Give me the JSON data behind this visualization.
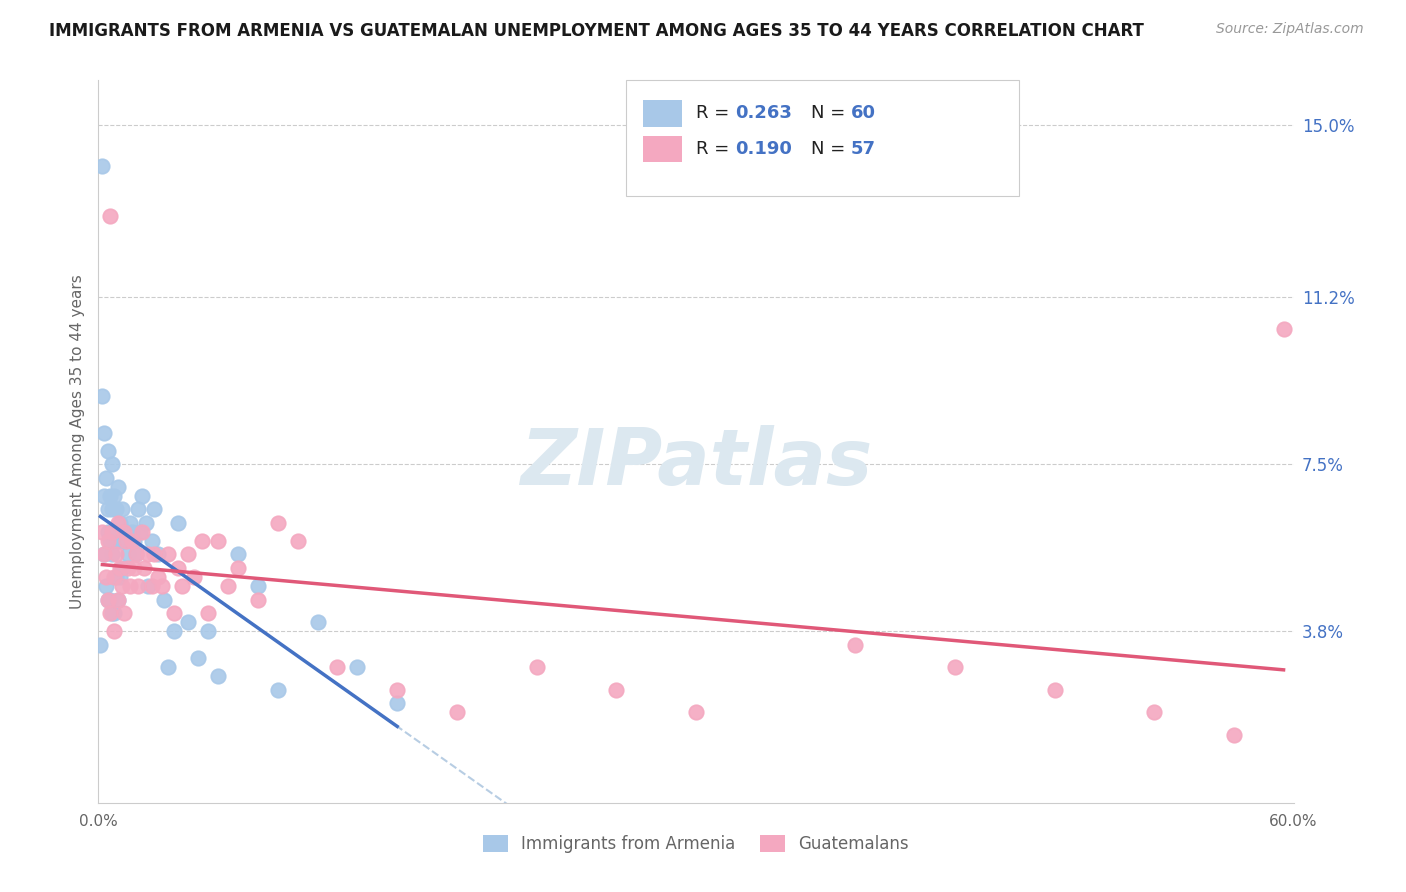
{
  "title": "IMMIGRANTS FROM ARMENIA VS GUATEMALAN UNEMPLOYMENT AMONG AGES 35 TO 44 YEARS CORRELATION CHART",
  "source": "Source: ZipAtlas.com",
  "ylabel": "Unemployment Among Ages 35 to 44 years",
  "xlim": [
    0.0,
    0.6
  ],
  "ylim": [
    0.0,
    0.16
  ],
  "x_ticks": [
    0.0,
    0.1,
    0.2,
    0.3,
    0.4,
    0.5,
    0.6
  ],
  "x_tick_labels": [
    "0.0%",
    "",
    "",
    "",
    "",
    "",
    "60.0%"
  ],
  "y_tick_labels_right": [
    "15.0%",
    "11.2%",
    "7.5%",
    "3.8%"
  ],
  "y_tick_vals_right": [
    0.15,
    0.112,
    0.075,
    0.038
  ],
  "r_armenia": 0.263,
  "n_armenia": 60,
  "r_guatemalan": 0.19,
  "n_guatemalan": 57,
  "armenia_color": "#a8c8e8",
  "guatemalan_color": "#f4a8c0",
  "armenia_line_color": "#4472c4",
  "guatemalan_line_color": "#e05878",
  "dashed_line_color": "#b0c8e0",
  "legend_text_color": "#4472c4",
  "watermark_color": "#dce8f0",
  "armenia_x": [
    0.001,
    0.002,
    0.002,
    0.003,
    0.003,
    0.003,
    0.004,
    0.004,
    0.005,
    0.005,
    0.005,
    0.005,
    0.006,
    0.006,
    0.006,
    0.007,
    0.007,
    0.007,
    0.007,
    0.008,
    0.008,
    0.008,
    0.009,
    0.009,
    0.01,
    0.01,
    0.01,
    0.011,
    0.011,
    0.012,
    0.012,
    0.013,
    0.014,
    0.015,
    0.016,
    0.017,
    0.018,
    0.019,
    0.02,
    0.021,
    0.022,
    0.024,
    0.025,
    0.027,
    0.028,
    0.03,
    0.033,
    0.035,
    0.038,
    0.04,
    0.045,
    0.05,
    0.055,
    0.06,
    0.07,
    0.08,
    0.09,
    0.11,
    0.13,
    0.15
  ],
  "armenia_y": [
    0.035,
    0.141,
    0.09,
    0.082,
    0.068,
    0.055,
    0.072,
    0.048,
    0.078,
    0.065,
    0.06,
    0.045,
    0.068,
    0.058,
    0.045,
    0.075,
    0.065,
    0.055,
    0.042,
    0.068,
    0.058,
    0.042,
    0.065,
    0.05,
    0.07,
    0.058,
    0.045,
    0.062,
    0.05,
    0.065,
    0.052,
    0.058,
    0.06,
    0.055,
    0.062,
    0.06,
    0.058,
    0.055,
    0.065,
    0.06,
    0.068,
    0.062,
    0.048,
    0.058,
    0.065,
    0.055,
    0.045,
    0.03,
    0.038,
    0.062,
    0.04,
    0.032,
    0.038,
    0.028,
    0.055,
    0.048,
    0.025,
    0.04,
    0.03,
    0.022
  ],
  "guatemalan_x": [
    0.002,
    0.003,
    0.004,
    0.005,
    0.005,
    0.006,
    0.006,
    0.007,
    0.008,
    0.008,
    0.009,
    0.01,
    0.01,
    0.011,
    0.012,
    0.013,
    0.013,
    0.014,
    0.015,
    0.016,
    0.017,
    0.018,
    0.019,
    0.02,
    0.022,
    0.023,
    0.025,
    0.027,
    0.028,
    0.03,
    0.032,
    0.035,
    0.038,
    0.04,
    0.042,
    0.045,
    0.048,
    0.052,
    0.055,
    0.06,
    0.065,
    0.07,
    0.08,
    0.09,
    0.1,
    0.12,
    0.15,
    0.18,
    0.22,
    0.26,
    0.3,
    0.38,
    0.43,
    0.48,
    0.53,
    0.57,
    0.595
  ],
  "guatemalan_y": [
    0.06,
    0.055,
    0.05,
    0.058,
    0.045,
    0.13,
    0.042,
    0.06,
    0.05,
    0.038,
    0.055,
    0.062,
    0.045,
    0.052,
    0.048,
    0.06,
    0.042,
    0.058,
    0.052,
    0.048,
    0.058,
    0.052,
    0.055,
    0.048,
    0.06,
    0.052,
    0.055,
    0.048,
    0.055,
    0.05,
    0.048,
    0.055,
    0.042,
    0.052,
    0.048,
    0.055,
    0.05,
    0.058,
    0.042,
    0.058,
    0.048,
    0.052,
    0.045,
    0.062,
    0.058,
    0.03,
    0.025,
    0.02,
    0.03,
    0.025,
    0.02,
    0.035,
    0.03,
    0.025,
    0.02,
    0.015,
    0.105
  ]
}
